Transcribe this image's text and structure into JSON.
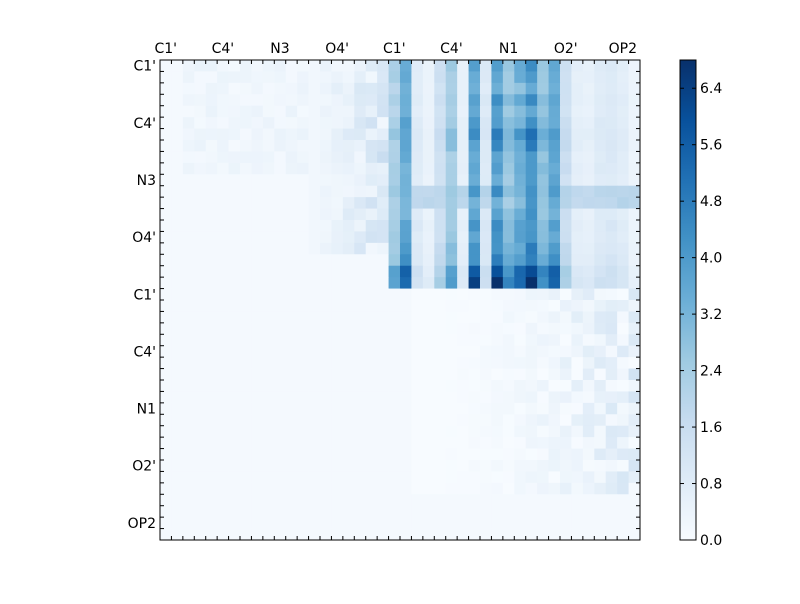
{
  "chart_data": {
    "type": "heatmap",
    "colormap": "Blues",
    "colors": {
      "low": "#f7fbff",
      "high": "#08306b",
      "stops": [
        "#f7fbff",
        "#deebf7",
        "#c6dbef",
        "#9ecae1",
        "#6baed6",
        "#4292c6",
        "#2171b5",
        "#08519c",
        "#08306b"
      ]
    },
    "x_tick_labels": [
      "C1'",
      "C4'",
      "N3",
      "O4'",
      "C1'",
      "C4'",
      "N1",
      "O2'",
      "OP2"
    ],
    "y_tick_labels": [
      "C1'",
      "C4'",
      "N3",
      "O4'",
      "C1'",
      "C4'",
      "N1",
      "O2'",
      "OP2"
    ],
    "x_axis_position": "top",
    "size": 42,
    "colorbar": {
      "min": 0.0,
      "max": 6.8,
      "ticks": [
        "0.0",
        "0.8",
        "1.6",
        "2.4",
        "3.2",
        "4.0",
        "4.8",
        "5.6",
        "6.4"
      ]
    },
    "upper_right_block": {
      "rows": [
        0,
        19
      ],
      "cols": [
        20,
        41
      ],
      "column_profile": [
        2.4,
        3.6,
        0.9,
        0.5,
        1.5,
        2.7,
        0.6,
        3.8,
        1.0,
        4.2,
        2.9,
        3.5,
        4.5,
        3.0,
        3.8,
        1.6,
        0.7,
        0.6,
        0.9,
        1.0,
        0.8,
        0.4
      ],
      "row_scale": [
        0.95,
        0.9,
        0.85,
        0.95,
        0.85,
        1.0,
        1.1,
        1.0,
        0.9,
        0.95,
        0.9,
        1.0,
        0.85,
        0.95,
        1.0,
        1.0,
        1.05,
        1.15,
        1.45,
        1.55
      ],
      "bright_rows": [
        11,
        12
      ],
      "bright_row_value": 2.0
    },
    "upper_left_block": {
      "rows": [
        0,
        16
      ],
      "cols": [
        13,
        19
      ],
      "value_range": [
        0.2,
        1.6
      ]
    },
    "lower_right_scatter": {
      "rows": [
        20,
        37
      ],
      "cols": [
        22,
        41
      ],
      "value_range": [
        0.0,
        1.3
      ]
    },
    "background_value": 0.1
  }
}
